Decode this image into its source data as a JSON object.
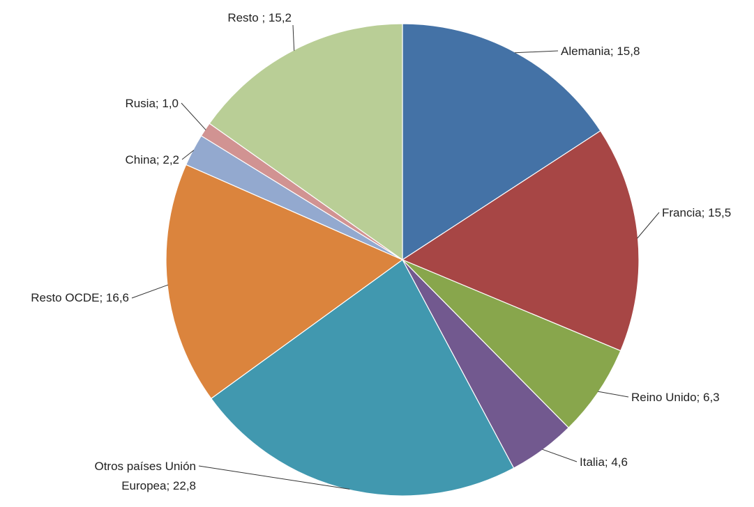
{
  "chart_data": {
    "type": "pie",
    "title": "",
    "start_angle_deg": 0,
    "direction": "clockwise",
    "slices": [
      {
        "label": "Alemania",
        "value": 15.8,
        "display": "Alemania; 15,8",
        "color": "#4472A6"
      },
      {
        "label": "Francia",
        "value": 15.5,
        "display": "Francia; 15,5",
        "color": "#A74645"
      },
      {
        "label": "Reino Unido",
        "value": 6.3,
        "display": "Reino Unido; 6,3",
        "color": "#88A64C"
      },
      {
        "label": "Italia",
        "value": 4.6,
        "display": "Italia; 4,6",
        "color": "#72598F"
      },
      {
        "label": "Otros países Unión Europea",
        "value": 22.8,
        "display": [
          "Otros países Unión",
          "Europea; 22,8"
        ],
        "color": "#4198AF"
      },
      {
        "label": "Resto OCDE",
        "value": 16.6,
        "display": "Resto OCDE; 16,6",
        "color": "#DB843D"
      },
      {
        "label": "China",
        "value": 2.2,
        "display": "China; 2,2",
        "color": "#93A9CF"
      },
      {
        "label": "Rusia",
        "value": 1.0,
        "display": "Rusia; 1,0",
        "color": "#D19392"
      },
      {
        "label": "Resto",
        "value": 15.2,
        "display": "Resto ; 15,2",
        "color": "#B9CE96"
      }
    ]
  }
}
